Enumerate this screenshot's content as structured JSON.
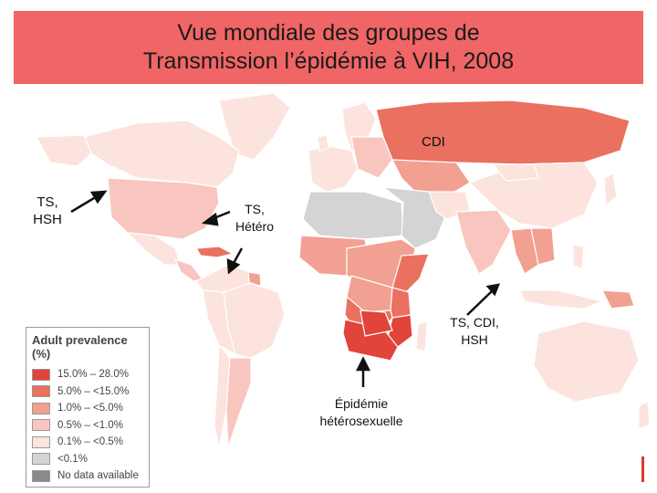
{
  "title": {
    "line1": "Vue mondiale des groupes de",
    "line2": "Transmission l’épidémie à VIH, 2008"
  },
  "annotations": {
    "cdi": "CDI",
    "ts_hsh": [
      "TS,",
      "HSH"
    ],
    "ts_hetero": [
      "TS,",
      "Hétéro"
    ],
    "ts_cdi_hsh": [
      "TS, CDI,",
      "HSH"
    ],
    "epidemie": [
      "Épidémie",
      "hétérosexuelle"
    ]
  },
  "legend": {
    "title": "Adult prevalence (%)",
    "items": [
      {
        "label": "15.0% – 28.0%",
        "color": "#e0443a"
      },
      {
        "label": "5.0% – <15.0%",
        "color": "#ea7060"
      },
      {
        "label": "1.0% – <5.0%",
        "color": "#f2a091"
      },
      {
        "label": "0.5% – <1.0%",
        "color": "#f8c6bf"
      },
      {
        "label": "0.1% – <0.5%",
        "color": "#fce3dd"
      },
      {
        "label": "<0.1%",
        "color": "#d4d4d4"
      },
      {
        "label": "No data available",
        "color": "#8a8a8a"
      }
    ]
  },
  "colors": {
    "title_bar": "#f06565",
    "ocean": "#ffffff",
    "border": "#ffffff"
  }
}
